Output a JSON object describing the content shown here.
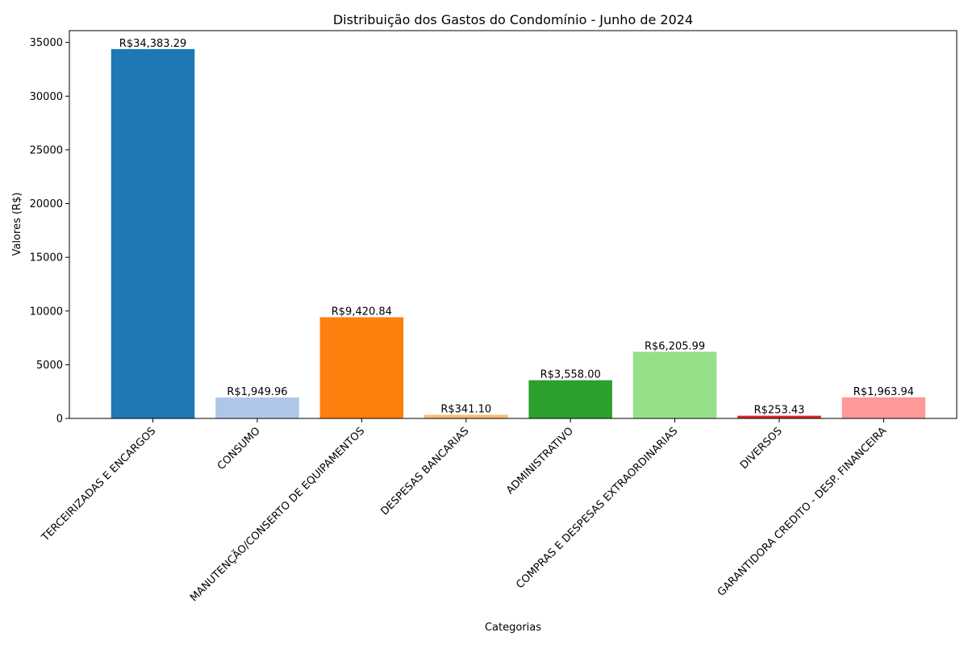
{
  "chart_data": {
    "type": "bar",
    "title": "Distribuição dos Gastos do Condomínio - Junho de 2024",
    "xlabel": "Categorias",
    "ylabel": "Valores (R$)",
    "ylim": [
      0,
      36100
    ],
    "yticks": [
      0,
      5000,
      10000,
      15000,
      20000,
      25000,
      30000,
      35000
    ],
    "grid": false,
    "categories": [
      "TERCEIRIZADAS E ENCARGOS",
      "CONSUMO",
      "MANUTENÇÃO/CONSERTO DE EQUIPAMENTOS",
      "DESPESAS BANCARIAS",
      "ADMINISTRATIVO",
      "COMPRAS E DESPESAS EXTRAORDINARIAS",
      "DIVERSOS",
      "GARANTIDORA CREDITO - DESP. FINANCEIRA"
    ],
    "values": [
      34383.29,
      1949.96,
      9420.84,
      341.1,
      3558.0,
      6205.99,
      253.43,
      1963.94
    ],
    "value_labels": [
      "R$34,383.29",
      "R$1,949.96",
      "R$9,420.84",
      "R$341.10",
      "R$3,558.00",
      "R$6,205.99",
      "R$253.43",
      "R$1,963.94"
    ],
    "colors": [
      "#1f77b4",
      "#aec7e8",
      "#ff7f0e",
      "#ffbb78",
      "#2ca02c",
      "#98df8a",
      "#d62728",
      "#ff9896"
    ]
  }
}
